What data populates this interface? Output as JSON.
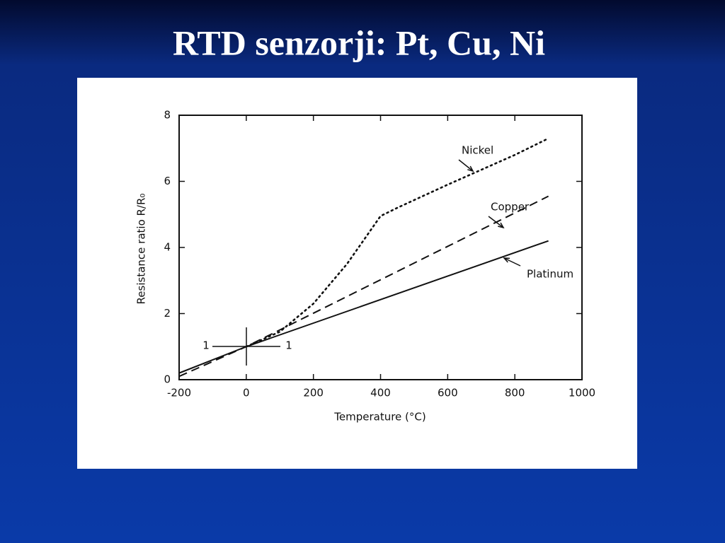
{
  "chart_data": {
    "type": "line",
    "title": "RTD senzorji: Pt, Cu, Ni",
    "x_label": "Temperature (°C)",
    "y_label": "Resistance ratio R/R₀",
    "xlim": [
      -200,
      1000
    ],
    "xticks": [
      -200,
      0,
      200,
      400,
      600,
      800,
      1000
    ],
    "ylim": [
      0,
      8
    ],
    "yticks": [
      0,
      2,
      4,
      6,
      8
    ],
    "grid": false,
    "reference_labels": [
      "1",
      "1"
    ],
    "series": [
      {
        "name": "Nickel",
        "color": "#111111",
        "style": "dotted",
        "x": [
          0,
          100,
          200,
          300,
          400,
          450,
          600,
          800,
          900
        ],
        "values": [
          1,
          1.45,
          2.3,
          3.5,
          4.95,
          5.2,
          5.9,
          6.8,
          7.3
        ]
      },
      {
        "name": "Copper",
        "color": "#111111",
        "style": "dashed",
        "x": [
          -200,
          0,
          900
        ],
        "values": [
          0.1,
          1,
          5.55
        ]
      },
      {
        "name": "Platinum",
        "color": "#111111",
        "style": "solid",
        "x": [
          -200,
          0,
          900
        ],
        "values": [
          0.2,
          1,
          4.2
        ]
      }
    ]
  }
}
